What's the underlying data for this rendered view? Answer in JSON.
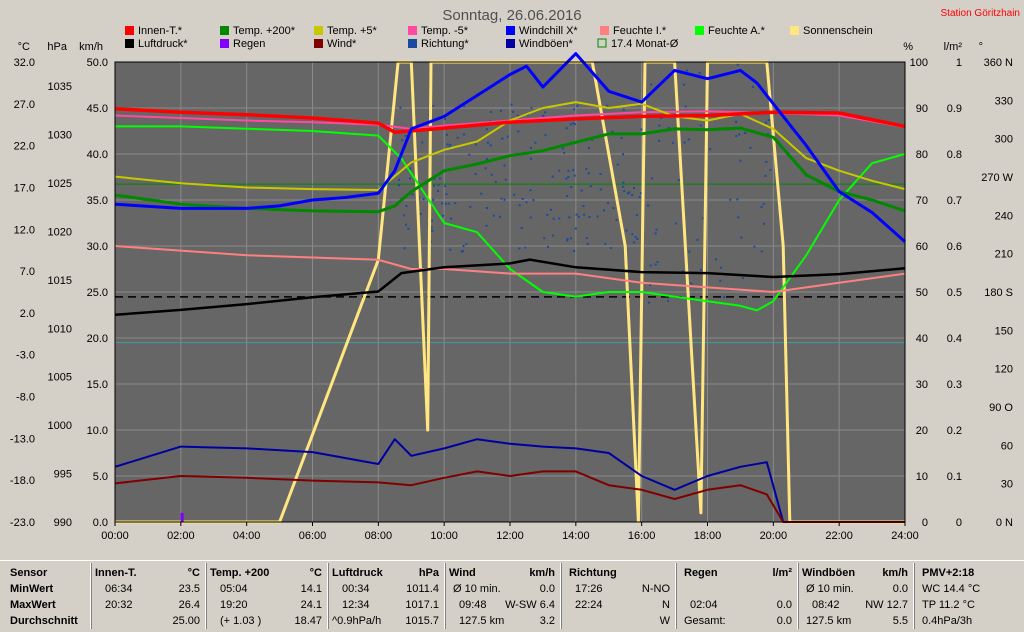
{
  "title": "Sonntag, 26.06.2016",
  "station": "Station Göritzhain",
  "colors": {
    "plot_bg": "#666666",
    "frame_bg": "#d4d0c8",
    "innen": "#ff0000",
    "aussen200": "#008800",
    "aussen5": "#c8c800",
    "temp_minus5": "#ff4aa0",
    "windchill": "#0000ff",
    "feuchte_innen": "#ff8080",
    "feuchte_aussen": "#00ff00",
    "sonnenschein": "#ffe680",
    "luftdruck": "#000000",
    "regen": "#8000ff",
    "wind": "#800000",
    "richtung": "#1a4aa0",
    "windboeen": "#0000a0",
    "monat": "#008800"
  },
  "legend": [
    {
      "key": "innen",
      "label": "Innen-T.*",
      "color": "#ff0000"
    },
    {
      "key": "aussen200",
      "label": "Temp. +200*",
      "color": "#008800"
    },
    {
      "key": "aussen5",
      "label": "Temp. +5*",
      "color": "#c8c800"
    },
    {
      "key": "temp_minus5",
      "label": "Temp. -5*",
      "color": "#ff4aa0"
    },
    {
      "key": "windchill",
      "label": "Windchill X*",
      "color": "#0000ff"
    },
    {
      "key": "feuchte_innen",
      "label": "Feuchte I.*",
      "color": "#ff8080"
    },
    {
      "key": "feuchte_aussen",
      "label": "Feuchte A.*",
      "color": "#00ff00"
    },
    {
      "key": "sonnenschein",
      "label": "Sonnenschein",
      "color": "#ffe680"
    },
    {
      "key": "luftdruck",
      "label": "Luftdruck*",
      "color": "#000000"
    },
    {
      "key": "regen",
      "label": "Regen",
      "color": "#8000ff"
    },
    {
      "key": "wind",
      "label": "Wind*",
      "color": "#800000"
    },
    {
      "key": "richtung",
      "label": "Richtung*",
      "color": "#1a4aa0"
    },
    {
      "key": "windboeen",
      "label": "Windböen*",
      "color": "#0000a0"
    },
    {
      "key": "monat",
      "label": "17.4 Monat-Ø",
      "color": "#008800",
      "outline": true
    }
  ],
  "axes": {
    "celsius": {
      "unit": "°C",
      "ticks": [
        "32.0",
        "27.0",
        "22.0",
        "17.0",
        "12.0",
        "7.0",
        "2.0",
        "-3.0",
        "-8.0",
        "-13.0",
        "-18.0",
        "-23.0"
      ],
      "min": -23,
      "max": 32
    },
    "hpa": {
      "unit": "hPa",
      "ticks": [
        "1035",
        "1030",
        "1025",
        "1020",
        "1015",
        "1010",
        "1005",
        "1000",
        "995",
        "990"
      ],
      "min": 990,
      "max": 1037.5
    },
    "kmh": {
      "unit": "km/h",
      "ticks": [
        "50.0",
        "45.0",
        "40.0",
        "35.0",
        "30.0",
        "25.0",
        "20.0",
        "15.0",
        "10.0",
        "5.0",
        "0.0"
      ],
      "min": 0,
      "max": 50
    },
    "percent": {
      "unit": "%",
      "ticks": [
        "100",
        "90",
        "80",
        "70",
        "60",
        "50",
        "40",
        "30",
        "20",
        "10",
        "0"
      ],
      "min": 0,
      "max": 100
    },
    "lm2": {
      "unit": "l/m²",
      "ticks": [
        "1",
        "0.9",
        "0.8",
        "0.7",
        "0.6",
        "0.5",
        "0.4",
        "0.3",
        "0.2",
        "0.1",
        "0"
      ],
      "min": 0,
      "max": 1
    },
    "deg": {
      "unit": "°",
      "ticks": [
        "360 N",
        "330",
        "300",
        "270 W",
        "240",
        "210",
        "180 S",
        "150",
        "120",
        "90 O",
        "60",
        "30",
        "0 N"
      ],
      "min": 0,
      "max": 360
    },
    "time_ticks": [
      "00:00",
      "02:00",
      "04:00",
      "06:00",
      "08:00",
      "10:00",
      "12:00",
      "14:00",
      "16:00",
      "18:00",
      "20:00",
      "22:00",
      "24:00"
    ]
  },
  "chart_data": {
    "type": "line",
    "title": "Sonntag, 26.06.2016",
    "x_unit": "h",
    "x_range": [
      0,
      24
    ],
    "series": [
      {
        "name": "Innen-T.*",
        "axis": "celsius",
        "values": [
          [
            0,
            26.4
          ],
          [
            2,
            26.0
          ],
          [
            4,
            25.7
          ],
          [
            6,
            25.3
          ],
          [
            8,
            24.7
          ],
          [
            8.5,
            23.6
          ],
          [
            10,
            24.1
          ],
          [
            12,
            24.8
          ],
          [
            14,
            25.2
          ],
          [
            16,
            25.5
          ],
          [
            18,
            25.6
          ],
          [
            20,
            26.0
          ],
          [
            22,
            25.9
          ],
          [
            24,
            24.3
          ]
        ]
      },
      {
        "name": "Temp. +200*",
        "axis": "celsius",
        "values": [
          [
            0,
            16.1
          ],
          [
            2,
            15.0
          ],
          [
            4,
            14.5
          ],
          [
            6,
            14.2
          ],
          [
            8,
            14.1
          ],
          [
            8.5,
            14.8
          ],
          [
            9,
            16.5
          ],
          [
            10,
            19.0
          ],
          [
            11,
            19.8
          ],
          [
            12,
            20.8
          ],
          [
            13,
            21.4
          ],
          [
            14,
            22.4
          ],
          [
            15,
            23.4
          ],
          [
            16,
            23.4
          ],
          [
            17,
            24.0
          ],
          [
            18,
            23.9
          ],
          [
            19,
            24.1
          ],
          [
            20,
            23.0
          ],
          [
            21,
            18.5
          ],
          [
            22,
            16.5
          ],
          [
            23,
            15.5
          ],
          [
            24,
            14.2
          ]
        ]
      },
      {
        "name": "Temp. +5*",
        "axis": "celsius",
        "values": [
          [
            0,
            18.3
          ],
          [
            2,
            17.5
          ],
          [
            4,
            17.0
          ],
          [
            6,
            16.8
          ],
          [
            8,
            16.7
          ],
          [
            9,
            20.0
          ],
          [
            10,
            21.5
          ],
          [
            11,
            22.5
          ],
          [
            12,
            25.0
          ],
          [
            13,
            26.5
          ],
          [
            14,
            27.2
          ],
          [
            15,
            26.5
          ],
          [
            16,
            27.0
          ],
          [
            17,
            25.5
          ],
          [
            18,
            25.0
          ],
          [
            19,
            25.8
          ],
          [
            20,
            24.0
          ],
          [
            21,
            20.5
          ],
          [
            22,
            19.0
          ],
          [
            23,
            17.8
          ],
          [
            24,
            16.8
          ]
        ]
      },
      {
        "name": "Temp. -5*",
        "axis": "celsius",
        "values": [
          [
            0,
            25.6
          ],
          [
            2,
            25.3
          ],
          [
            4,
            25.0
          ],
          [
            6,
            24.8
          ],
          [
            8,
            24.5
          ],
          [
            9,
            24.0
          ],
          [
            10,
            24.4
          ],
          [
            12,
            25.0
          ],
          [
            14,
            25.6
          ],
          [
            16,
            26.0
          ],
          [
            18,
            26.1
          ],
          [
            20,
            25.9
          ],
          [
            22,
            25.6
          ],
          [
            24,
            24.2
          ]
        ]
      },
      {
        "name": "Windchill X*",
        "axis": "celsius",
        "values": [
          [
            0,
            15.0
          ],
          [
            2,
            14.5
          ],
          [
            4,
            14.5
          ],
          [
            5,
            14.8
          ],
          [
            6,
            15.5
          ],
          [
            7,
            15.8
          ],
          [
            8,
            16.3
          ],
          [
            8.5,
            19.0
          ],
          [
            9,
            24.0
          ],
          [
            10,
            25.5
          ],
          [
            11,
            28.0
          ],
          [
            12,
            30.5
          ],
          [
            12.5,
            31.5
          ],
          [
            13,
            29.0
          ],
          [
            14,
            33.0
          ],
          [
            15,
            28.5
          ],
          [
            16,
            27.2
          ],
          [
            17,
            31.0
          ],
          [
            18,
            30.0
          ],
          [
            19,
            31.0
          ],
          [
            19.5,
            29.5
          ],
          [
            20,
            27.0
          ],
          [
            21,
            22.0
          ],
          [
            22,
            16.5
          ],
          [
            23,
            14.0
          ],
          [
            24,
            10.5
          ]
        ]
      },
      {
        "name": "Luftdruck*",
        "axis": "hpa",
        "values": [
          [
            0,
            1011.4
          ],
          [
            2,
            1011.9
          ],
          [
            4,
            1012.5
          ],
          [
            6,
            1013.2
          ],
          [
            8,
            1013.8
          ],
          [
            8.7,
            1015.7
          ],
          [
            10,
            1016.3
          ],
          [
            12,
            1016.7
          ],
          [
            12.6,
            1017.1
          ],
          [
            14,
            1016.3
          ],
          [
            16,
            1015.8
          ],
          [
            18,
            1015.7
          ],
          [
            20,
            1015.3
          ],
          [
            22,
            1015.6
          ],
          [
            24,
            1016.2
          ]
        ]
      },
      {
        "name": "Feuchte I.*",
        "axis": "percent",
        "values": [
          [
            0,
            60
          ],
          [
            2,
            59
          ],
          [
            4,
            58
          ],
          [
            6,
            57.5
          ],
          [
            8,
            57
          ],
          [
            9,
            55
          ],
          [
            10,
            55
          ],
          [
            12,
            54
          ],
          [
            14,
            54
          ],
          [
            16,
            52
          ],
          [
            18,
            51
          ],
          [
            20,
            50
          ],
          [
            22,
            52
          ],
          [
            24,
            54
          ]
        ]
      },
      {
        "name": "Feuchte A.*",
        "axis": "percent",
        "values": [
          [
            0,
            86
          ],
          [
            2,
            86
          ],
          [
            4,
            85.5
          ],
          [
            6,
            85
          ],
          [
            8,
            84
          ],
          [
            8.7,
            79
          ],
          [
            10,
            65
          ],
          [
            11,
            63
          ],
          [
            12,
            55
          ],
          [
            13,
            50
          ],
          [
            14,
            49
          ],
          [
            15,
            50
          ],
          [
            16,
            50
          ],
          [
            17,
            49
          ],
          [
            18,
            48
          ],
          [
            19,
            47
          ],
          [
            19.5,
            46
          ],
          [
            20,
            48
          ],
          [
            21,
            58
          ],
          [
            22,
            70
          ],
          [
            23,
            78
          ],
          [
            24,
            80
          ]
        ]
      },
      {
        "name": "Wind*",
        "axis": "kmh",
        "values": [
          [
            0,
            4.2
          ],
          [
            2,
            5.0
          ],
          [
            4,
            4.8
          ],
          [
            6,
            4.5
          ],
          [
            8,
            4.3
          ],
          [
            9,
            4.0
          ],
          [
            10,
            4.8
          ],
          [
            11,
            5.5
          ],
          [
            12,
            5.0
          ],
          [
            13,
            5.5
          ],
          [
            14,
            5.5
          ],
          [
            15,
            4.0
          ],
          [
            16,
            3.5
          ],
          [
            17,
            2.5
          ],
          [
            18,
            3.5
          ],
          [
            19,
            4.0
          ],
          [
            19.8,
            3.0
          ],
          [
            20.3,
            0.0
          ],
          [
            24,
            0.0
          ]
        ]
      },
      {
        "name": "Windböen*",
        "axis": "kmh",
        "values": [
          [
            0,
            6.0
          ],
          [
            2,
            8.2
          ],
          [
            4,
            8.0
          ],
          [
            6,
            7.6
          ],
          [
            8,
            6.3
          ],
          [
            8.5,
            9.0
          ],
          [
            9,
            7.2
          ],
          [
            10,
            8.0
          ],
          [
            11,
            9.0
          ],
          [
            12,
            8.5
          ],
          [
            13,
            8.2
          ],
          [
            14,
            8.0
          ],
          [
            15,
            7.5
          ],
          [
            16,
            5.0
          ],
          [
            17,
            3.5
          ],
          [
            18,
            5.0
          ],
          [
            19,
            6.0
          ],
          [
            19.8,
            6.5
          ],
          [
            20.3,
            0.0
          ],
          [
            24,
            0.0
          ]
        ]
      },
      {
        "name": "Sonnenschein",
        "axis": "percent",
        "values": [
          [
            0,
            0
          ],
          [
            5,
            0
          ],
          [
            8,
            57
          ],
          [
            8.6,
            100
          ],
          [
            9,
            100
          ],
          [
            9.5,
            20
          ],
          [
            9.6,
            100
          ],
          [
            14.5,
            100
          ],
          [
            15.5,
            60
          ],
          [
            15.9,
            0
          ],
          [
            16.1,
            100
          ],
          [
            17,
            100
          ],
          [
            17.8,
            2
          ],
          [
            18,
            100
          ],
          [
            19.8,
            100
          ],
          [
            20.3,
            60
          ],
          [
            20.5,
            0
          ],
          [
            24,
            0
          ]
        ]
      },
      {
        "name": "Regen",
        "axis": "lm2",
        "values": [
          [
            2.04,
            0.02
          ]
        ]
      }
    ],
    "reference_lines": [
      {
        "name": "17.4 Monat-Ø",
        "axis": "celsius",
        "value": 17.4
      },
      {
        "name": "pressure-mean",
        "axis": "hpa",
        "value": 1013.25
      },
      {
        "name": "cyan-ref",
        "axis": "kmh",
        "value": 19.5
      }
    ],
    "grid": true,
    "legend": "top"
  },
  "summary": {
    "sensor": {
      "title": "Sensor",
      "rows": [
        "MinWert",
        "MaxWert",
        "Durchschnitt"
      ]
    },
    "innen": {
      "title": "Innen-T.",
      "unit": "°C",
      "rows": [
        [
          "06:34",
          "23.5"
        ],
        [
          "20:32",
          "26.4"
        ],
        [
          "",
          "25.00"
        ]
      ]
    },
    "temp200": {
      "title": "Temp. +200",
      "unit": "°C",
      "rows": [
        [
          "05:04",
          "14.1"
        ],
        [
          "19:20",
          "24.1"
        ],
        [
          "(+ 1.03 )",
          "18.47"
        ]
      ]
    },
    "luftdruck": {
      "title": "Luftdruck",
      "unit": "hPa",
      "rows": [
        [
          "00:34",
          "1011.4"
        ],
        [
          "12:34",
          "1017.1"
        ],
        [
          "^0.9hPa/h",
          "1015.7"
        ]
      ]
    },
    "wind": {
      "title": "Wind",
      "unit": "km/h",
      "rows": [
        [
          "Ø 10 min.",
          "0.0"
        ],
        [
          "09:48",
          "W-SW 6.4"
        ],
        [
          "127.5 km",
          "3.2"
        ]
      ]
    },
    "richtung": {
      "title": "Richtung",
      "unit": "",
      "rows": [
        [
          "17:26",
          "N-NO"
        ],
        [
          "22:24",
          "N"
        ],
        [
          "",
          "W"
        ]
      ]
    },
    "regen": {
      "title": "Regen",
      "unit": "l/m²",
      "rows": [
        [
          "",
          ""
        ],
        [
          "02:04",
          "0.0"
        ],
        [
          "Gesamt:",
          "0.0"
        ]
      ]
    },
    "windboeen": {
      "title": "Windböen",
      "unit": "km/h",
      "rows": [
        [
          "Ø 10 min.",
          "0.0"
        ],
        [
          "08:42",
          "NW 12.7"
        ],
        [
          "127.5 km",
          "5.5"
        ]
      ]
    },
    "pmv": {
      "title": "PMV+2:18",
      "rows": [
        "WC 14.4 °C",
        "TP 11.2 °C",
        "0.4hPa/3h"
      ]
    }
  }
}
